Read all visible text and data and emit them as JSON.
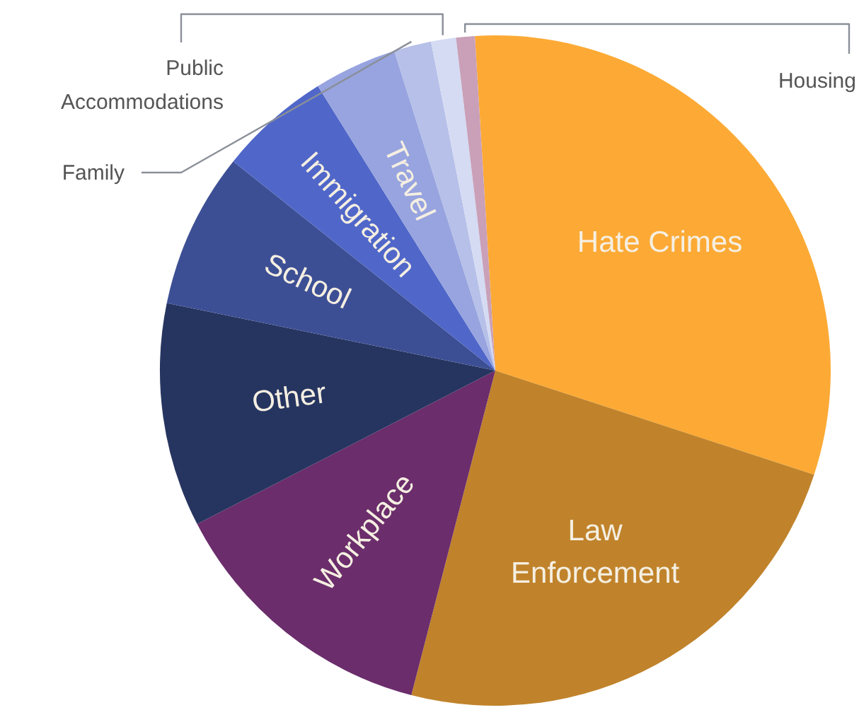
{
  "chart_data": {
    "type": "pie",
    "categories": [
      "Hate Crimes",
      "Law Enforcement",
      "Workplace",
      "Other",
      "School",
      "Immigration",
      "Travel",
      "Family",
      "Public Accommodations",
      "Housing"
    ],
    "values": [
      31,
      24,
      13.4,
      10.8,
      7.5,
      5.4,
      4,
      1.8,
      1.2,
      0.9
    ],
    "colors": [
      "#fcaa35",
      "#c0832b",
      "#6b2d6b",
      "#263560",
      "#3d4f94",
      "#5067c9",
      "#97a4df",
      "#b6c0e8",
      "#d4dbf3",
      "#c9a0b8"
    ]
  }
}
